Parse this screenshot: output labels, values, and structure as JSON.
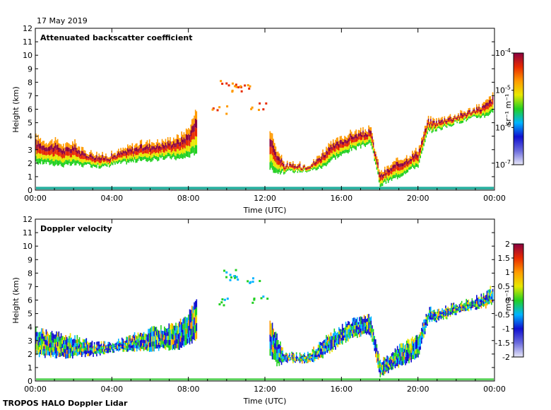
{
  "date": "17 May 2019",
  "footer": "TROPOS HALO Doppler Lidar",
  "colors": {
    "frame": "#000000",
    "background": "#ffffff",
    "backscatter_colormap": [
      "#e8e8f8",
      "#6a6adc",
      "#1010d0",
      "#00b4ff",
      "#22d022",
      "#e8e800",
      "#ff9a00",
      "#e82a00",
      "#8a0040"
    ],
    "velocity_colormap": [
      "#e8e8f8",
      "#6a6adc",
      "#1010d0",
      "#00b4ff",
      "#22d022",
      "#e8e800",
      "#ff9a00",
      "#e82a00",
      "#8a0040"
    ]
  },
  "chart_data": [
    {
      "type": "heatmap",
      "title": "Attenuated backscatter coefficient",
      "xlabel": "Time (UTC)",
      "ylabel": "Height (km)",
      "xlim": [
        0,
        24
      ],
      "ylim": [
        0,
        12
      ],
      "xticks": [
        "00:00",
        "04:00",
        "08:00",
        "12:00",
        "16:00",
        "20:00",
        "00:00"
      ],
      "yticks": [
        "0",
        "1",
        "2",
        "3",
        "4",
        "5",
        "6",
        "7",
        "8",
        "9",
        "10",
        "11",
        "12"
      ],
      "colorbar": {
        "label": "sr⁻¹ m⁻¹",
        "scale": "log",
        "range": [
          1e-07,
          0.0001
        ],
        "ticks": [
          {
            "base": "10",
            "exp": "-4",
            "value": -4
          },
          {
            "base": "10",
            "exp": "-5",
            "value": -5
          },
          {
            "base": "10",
            "exp": "-6",
            "value": -6
          },
          {
            "base": "10",
            "exp": "-7",
            "value": -7
          }
        ]
      },
      "surface_layer": {
        "x": [
          0,
          24
        ],
        "y": [
          0.05,
          0.25
        ]
      },
      "cloud_layer": [
        {
          "x": 0.0,
          "base": 2.0,
          "top": 4.0
        },
        {
          "x": 0.5,
          "base": 2.0,
          "top": 3.6
        },
        {
          "x": 1.0,
          "base": 1.9,
          "top": 3.7
        },
        {
          "x": 1.5,
          "base": 1.8,
          "top": 3.3
        },
        {
          "x": 2.0,
          "base": 1.9,
          "top": 3.6
        },
        {
          "x": 2.5,
          "base": 1.8,
          "top": 2.9
        },
        {
          "x": 3.0,
          "base": 1.8,
          "top": 2.8
        },
        {
          "x": 3.5,
          "base": 1.7,
          "top": 2.6
        },
        {
          "x": 4.0,
          "base": 1.9,
          "top": 2.7
        },
        {
          "x": 4.5,
          "base": 2.0,
          "top": 3.0
        },
        {
          "x": 5.0,
          "base": 2.1,
          "top": 3.3
        },
        {
          "x": 5.5,
          "base": 2.2,
          "top": 3.5
        },
        {
          "x": 6.0,
          "base": 2.2,
          "top": 3.6
        },
        {
          "x": 6.5,
          "base": 2.3,
          "top": 3.6
        },
        {
          "x": 7.0,
          "base": 2.4,
          "top": 3.8
        },
        {
          "x": 7.5,
          "base": 2.3,
          "top": 4.0
        },
        {
          "x": 8.0,
          "base": 2.5,
          "top": 4.6
        },
        {
          "x": 8.4,
          "base": 2.8,
          "top": 6.0
        },
        {
          "x": 12.2,
          "base": 1.6,
          "top": 4.8
        },
        {
          "x": 12.6,
          "base": 1.3,
          "top": 3.0
        },
        {
          "x": 13.0,
          "base": 1.3,
          "top": 2.0
        },
        {
          "x": 13.5,
          "base": 1.4,
          "top": 1.9
        },
        {
          "x": 14.0,
          "base": 1.4,
          "top": 1.9
        },
        {
          "x": 14.5,
          "base": 1.5,
          "top": 2.1
        },
        {
          "x": 15.0,
          "base": 1.7,
          "top": 2.9
        },
        {
          "x": 15.5,
          "base": 2.3,
          "top": 3.5
        },
        {
          "x": 16.0,
          "base": 2.6,
          "top": 3.9
        },
        {
          "x": 16.5,
          "base": 3.0,
          "top": 4.3
        },
        {
          "x": 17.0,
          "base": 3.2,
          "top": 4.4
        },
        {
          "x": 17.5,
          "base": 3.5,
          "top": 4.6
        },
        {
          "x": 18.0,
          "base": 0.3,
          "top": 1.3
        },
        {
          "x": 18.5,
          "base": 0.7,
          "top": 1.8
        },
        {
          "x": 19.0,
          "base": 1.0,
          "top": 2.3
        },
        {
          "x": 19.5,
          "base": 1.5,
          "top": 2.6
        },
        {
          "x": 20.0,
          "base": 1.8,
          "top": 3.1
        },
        {
          "x": 20.5,
          "base": 4.3,
          "top": 5.3
        },
        {
          "x": 21.0,
          "base": 4.5,
          "top": 5.2
        },
        {
          "x": 21.5,
          "base": 4.7,
          "top": 5.5
        },
        {
          "x": 22.0,
          "base": 5.0,
          "top": 5.6
        },
        {
          "x": 22.5,
          "base": 5.2,
          "top": 5.9
        },
        {
          "x": 23.0,
          "base": 5.4,
          "top": 6.1
        },
        {
          "x": 23.5,
          "base": 5.5,
          "top": 6.5
        },
        {
          "x": 23.9,
          "base": 5.8,
          "top": 7.1
        }
      ],
      "upper_clouds": [
        {
          "x": 10.0,
          "y": 7.9
        },
        {
          "x": 10.5,
          "y": 7.7
        },
        {
          "x": 11.0,
          "y": 7.6
        },
        {
          "x": 11.7,
          "y": 6.3
        },
        {
          "x": 9.6,
          "y": 6.0
        }
      ]
    },
    {
      "type": "heatmap",
      "title": "Doppler velocity",
      "xlabel": "Time (UTC)",
      "ylabel": "Height (km)",
      "xlim": [
        0,
        24
      ],
      "ylim": [
        0,
        12
      ],
      "xticks": [
        "00:00",
        "04:00",
        "08:00",
        "12:00",
        "16:00",
        "20:00",
        "00:00"
      ],
      "yticks": [
        "0",
        "1",
        "2",
        "3",
        "4",
        "5",
        "6",
        "7",
        "8",
        "9",
        "10",
        "11",
        "12"
      ],
      "colorbar": {
        "label": "m s⁻¹",
        "scale": "linear",
        "range": [
          -2,
          2
        ],
        "ticks": [
          "2",
          "1.5",
          "1",
          "0.5",
          "0",
          "-0.5",
          "-1",
          "-1.5",
          "-2"
        ]
      },
      "surface_layer": {
        "x": [
          0,
          24
        ],
        "y": [
          0.05,
          0.2
        ]
      },
      "cloud_layer": [
        {
          "x": 0.0,
          "base": 1.9,
          "top": 3.9
        },
        {
          "x": 0.5,
          "base": 1.8,
          "top": 3.6
        },
        {
          "x": 1.0,
          "base": 1.8,
          "top": 3.5
        },
        {
          "x": 1.5,
          "base": 1.8,
          "top": 3.4
        },
        {
          "x": 2.0,
          "base": 1.8,
          "top": 3.3
        },
        {
          "x": 2.5,
          "base": 1.9,
          "top": 3.0
        },
        {
          "x": 3.0,
          "base": 1.9,
          "top": 2.8
        },
        {
          "x": 3.5,
          "base": 2.0,
          "top": 2.7
        },
        {
          "x": 4.0,
          "base": 2.2,
          "top": 2.9
        },
        {
          "x": 4.5,
          "base": 2.3,
          "top": 3.1
        },
        {
          "x": 5.0,
          "base": 2.3,
          "top": 3.3
        },
        {
          "x": 5.5,
          "base": 2.3,
          "top": 3.5
        },
        {
          "x": 6.0,
          "base": 2.2,
          "top": 3.8
        },
        {
          "x": 6.5,
          "base": 2.4,
          "top": 3.9
        },
        {
          "x": 7.0,
          "base": 2.4,
          "top": 4.1
        },
        {
          "x": 7.5,
          "base": 2.4,
          "top": 4.4
        },
        {
          "x": 8.0,
          "base": 2.7,
          "top": 5.0
        },
        {
          "x": 8.4,
          "base": 3.2,
          "top": 6.2
        },
        {
          "x": 12.2,
          "base": 2.0,
          "top": 4.8
        },
        {
          "x": 12.6,
          "base": 1.2,
          "top": 3.3
        },
        {
          "x": 13.0,
          "base": 1.4,
          "top": 2.0
        },
        {
          "x": 13.5,
          "base": 1.4,
          "top": 1.9
        },
        {
          "x": 14.0,
          "base": 1.4,
          "top": 1.9
        },
        {
          "x": 14.5,
          "base": 1.5,
          "top": 2.3
        },
        {
          "x": 15.0,
          "base": 1.8,
          "top": 3.0
        },
        {
          "x": 15.5,
          "base": 2.3,
          "top": 3.6
        },
        {
          "x": 16.0,
          "base": 2.8,
          "top": 4.0
        },
        {
          "x": 16.5,
          "base": 3.2,
          "top": 4.5
        },
        {
          "x": 17.0,
          "base": 3.4,
          "top": 4.6
        },
        {
          "x": 17.5,
          "base": 3.5,
          "top": 4.8
        },
        {
          "x": 18.0,
          "base": 0.3,
          "top": 1.4
        },
        {
          "x": 18.5,
          "base": 0.8,
          "top": 2.0
        },
        {
          "x": 19.0,
          "base": 1.1,
          "top": 2.6
        },
        {
          "x": 19.5,
          "base": 1.4,
          "top": 3.0
        },
        {
          "x": 20.0,
          "base": 1.9,
          "top": 3.2
        },
        {
          "x": 20.5,
          "base": 4.4,
          "top": 5.3
        },
        {
          "x": 21.0,
          "base": 4.5,
          "top": 5.3
        },
        {
          "x": 21.5,
          "base": 4.7,
          "top": 5.6
        },
        {
          "x": 22.0,
          "base": 5.0,
          "top": 5.7
        },
        {
          "x": 22.5,
          "base": 5.2,
          "top": 6.0
        },
        {
          "x": 23.0,
          "base": 5.4,
          "top": 6.2
        },
        {
          "x": 23.5,
          "base": 5.5,
          "top": 6.5
        },
        {
          "x": 23.9,
          "base": 5.8,
          "top": 7.0
        }
      ],
      "upper_clouds": [
        {
          "x": 10.0,
          "y": 8.0
        },
        {
          "x": 10.6,
          "y": 7.8
        },
        {
          "x": 11.2,
          "y": 7.6
        },
        {
          "x": 11.7,
          "y": 6.1
        },
        {
          "x": 9.6,
          "y": 6.0
        }
      ]
    }
  ]
}
